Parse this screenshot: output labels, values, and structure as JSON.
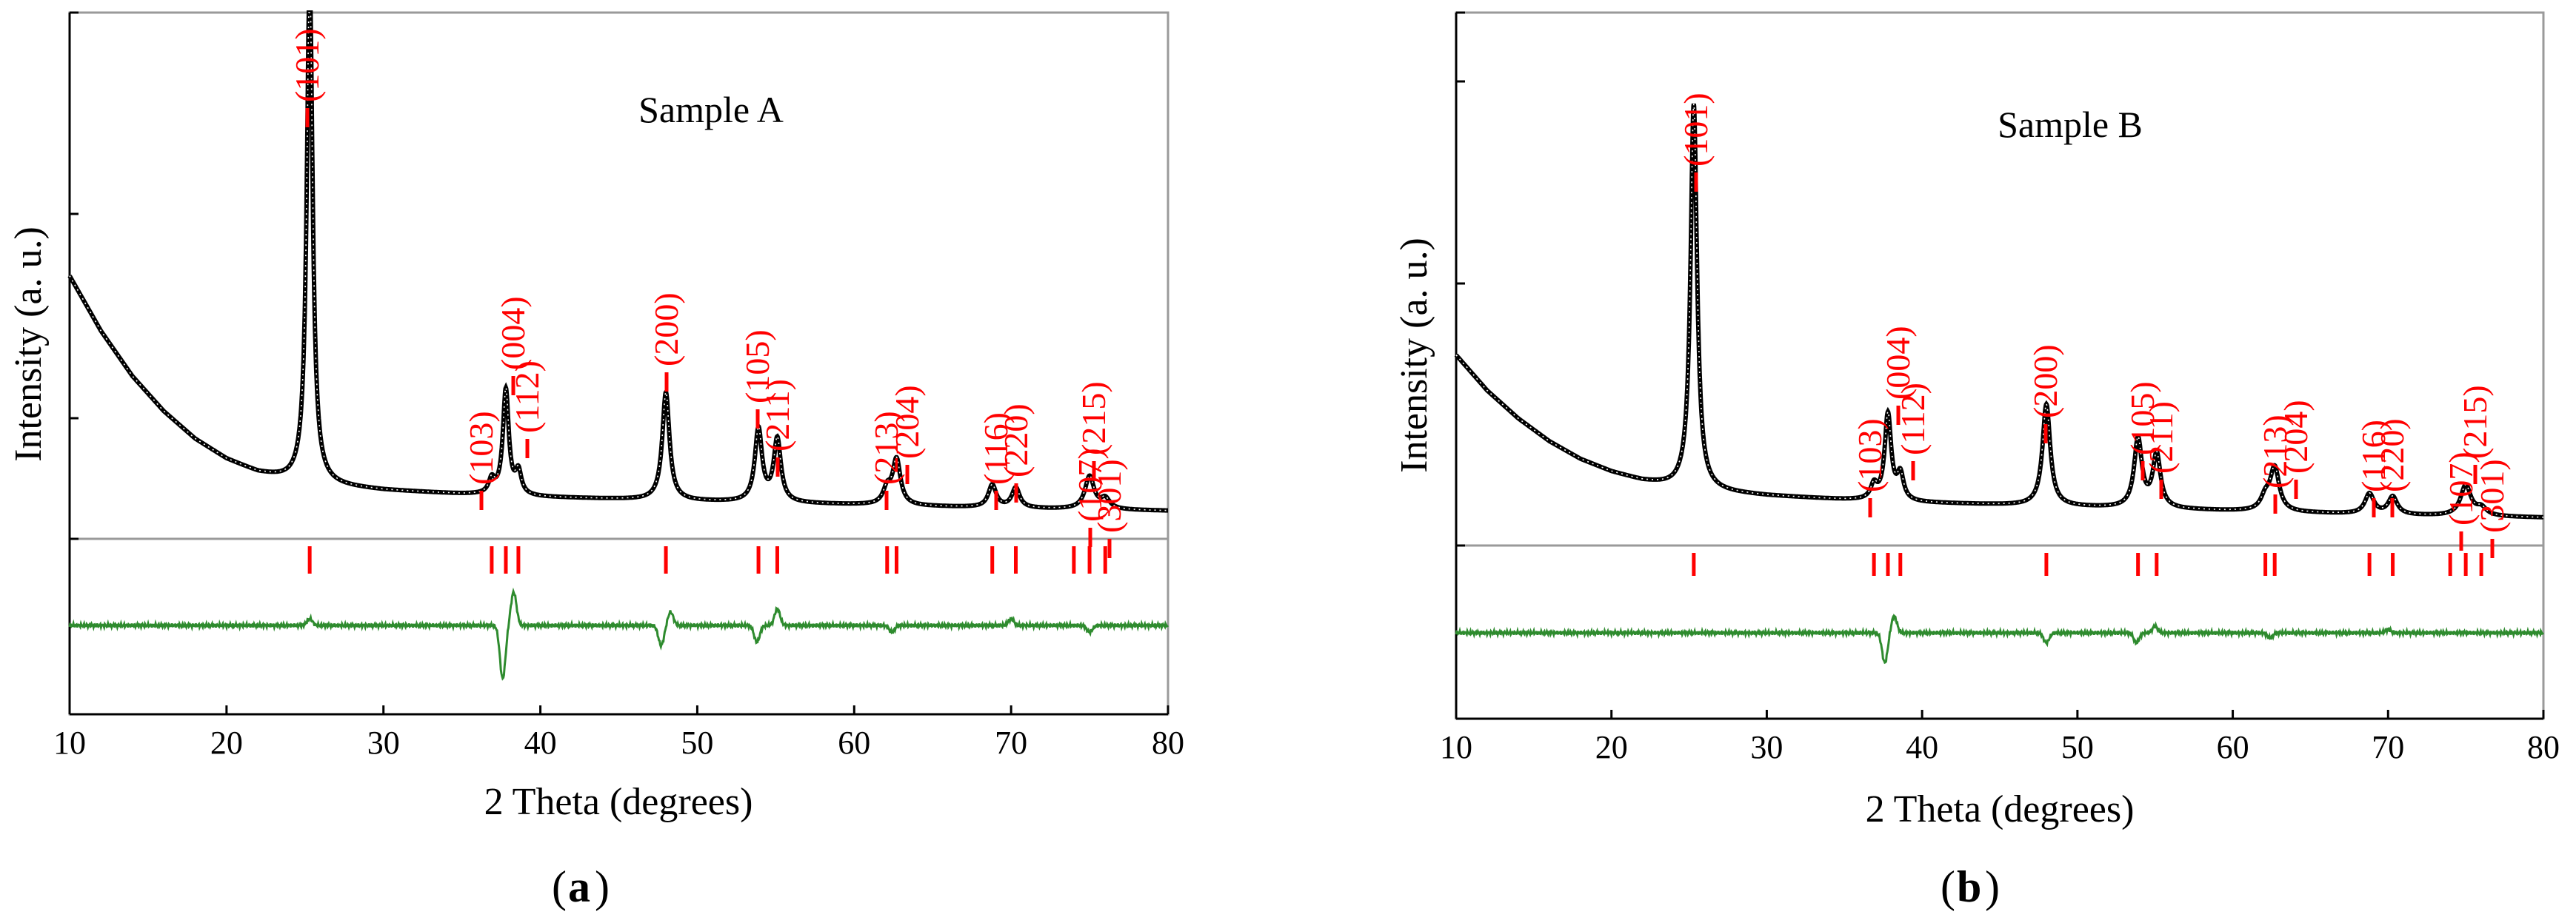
{
  "chart_data": [
    {
      "type": "line",
      "panel_label": "a",
      "title": "Sample A",
      "xlabel": "2 Theta (degrees)",
      "ylabel": "Intensity (a. u.)",
      "xlim": [
        10,
        80
      ],
      "xticks": [
        "10",
        "20",
        "30",
        "40",
        "50",
        "60",
        "70",
        "80"
      ],
      "ylim": [
        0,
        100
      ],
      "reflections": [
        {
          "hkl": "(101)",
          "two_theta": 25.3
        },
        {
          "hkl": "(103)",
          "two_theta": 36.9
        },
        {
          "hkl": "(004)",
          "two_theta": 37.8
        },
        {
          "hkl": "(112)",
          "two_theta": 38.6
        },
        {
          "hkl": "(200)",
          "two_theta": 48.0
        },
        {
          "hkl": "(105)",
          "two_theta": 53.9
        },
        {
          "hkl": "(211)",
          "two_theta": 55.1
        },
        {
          "hkl": "(213)",
          "two_theta": 62.1
        },
        {
          "hkl": "(204)",
          "two_theta": 62.7
        },
        {
          "hkl": "(116)",
          "two_theta": 68.8
        },
        {
          "hkl": "(220)",
          "two_theta": 70.3
        },
        {
          "hkl": "(107)",
          "two_theta": 74.0
        },
        {
          "hkl": "(215)",
          "two_theta": 75.0
        },
        {
          "hkl": "(301)",
          "two_theta": 76.0
        }
      ],
      "observed": {
        "baseline": [
          [
            10,
            49
          ],
          [
            12,
            38
          ],
          [
            14,
            29
          ],
          [
            16,
            22
          ],
          [
            18,
            16.5
          ],
          [
            20,
            12.5
          ],
          [
            22,
            9.8
          ],
          [
            24,
            8.2
          ],
          [
            26,
            7.3
          ],
          [
            30,
            6.3
          ],
          [
            35,
            5.5
          ],
          [
            40,
            4.9
          ],
          [
            50,
            4.1
          ],
          [
            60,
            3.4
          ],
          [
            70,
            2.7
          ],
          [
            80,
            2.2
          ]
        ],
        "peaks": [
          {
            "two_theta": 25.3,
            "height": 101,
            "fwhm": 0.45
          },
          {
            "two_theta": 36.9,
            "height": 2.8,
            "fwhm": 0.45
          },
          {
            "two_theta": 37.8,
            "height": 21,
            "fwhm": 0.45
          },
          {
            "two_theta": 38.6,
            "height": 4.5,
            "fwhm": 0.45
          },
          {
            "two_theta": 48.0,
            "height": 21.5,
            "fwhm": 0.55
          },
          {
            "two_theta": 53.9,
            "height": 14.5,
            "fwhm": 0.55
          },
          {
            "two_theta": 55.1,
            "height": 12.5,
            "fwhm": 0.55
          },
          {
            "two_theta": 62.1,
            "height": 3.0,
            "fwhm": 0.6
          },
          {
            "two_theta": 62.7,
            "height": 9.0,
            "fwhm": 0.6
          },
          {
            "two_theta": 68.8,
            "height": 4.5,
            "fwhm": 0.6
          },
          {
            "two_theta": 70.3,
            "height": 4.0,
            "fwhm": 0.6
          },
          {
            "two_theta": 75.0,
            "height": 6.5,
            "fwhm": 0.7
          },
          {
            "two_theta": 76.0,
            "height": 2.0,
            "fwhm": 0.7
          }
        ]
      },
      "difference": [
        {
          "two_theta": 25.3,
          "amplitude": 2
        },
        {
          "two_theta": 37.6,
          "amplitude": -16
        },
        {
          "two_theta": 38.3,
          "amplitude": 10
        },
        {
          "two_theta": 47.7,
          "amplitude": -6
        },
        {
          "two_theta": 48.3,
          "amplitude": 4
        },
        {
          "two_theta": 53.8,
          "amplitude": -5
        },
        {
          "two_theta": 55.1,
          "amplitude": 5
        },
        {
          "two_theta": 62.4,
          "amplitude": -2
        },
        {
          "two_theta": 70.0,
          "amplitude": 2
        },
        {
          "two_theta": 75.0,
          "amplitude": -2
        }
      ]
    },
    {
      "type": "line",
      "panel_label": "b",
      "title": "Sample B",
      "xlabel": "2 Theta (degrees)",
      "ylabel": "Intensity (a. u.)",
      "xlim": [
        10,
        80
      ],
      "xticks": [
        "10",
        "20",
        "30",
        "40",
        "50",
        "60",
        "70",
        "80"
      ],
      "ylim": [
        0,
        100
      ],
      "reflections": [
        {
          "hkl": "(101)",
          "two_theta": 25.3
        },
        {
          "hkl": "(103)",
          "two_theta": 36.9
        },
        {
          "hkl": "(004)",
          "two_theta": 37.8
        },
        {
          "hkl": "(112)",
          "two_theta": 38.6
        },
        {
          "hkl": "(200)",
          "two_theta": 48.0
        },
        {
          "hkl": "(105)",
          "two_theta": 53.9
        },
        {
          "hkl": "(211)",
          "two_theta": 55.1
        },
        {
          "hkl": "(213)",
          "two_theta": 62.1
        },
        {
          "hkl": "(204)",
          "two_theta": 62.7
        },
        {
          "hkl": "(116)",
          "two_theta": 68.8
        },
        {
          "hkl": "(220)",
          "two_theta": 70.3
        },
        {
          "hkl": "(107)",
          "two_theta": 74.0
        },
        {
          "hkl": "(215)",
          "two_theta": 75.0
        },
        {
          "hkl": "(301)",
          "two_theta": 76.0
        }
      ],
      "observed": {
        "baseline": [
          [
            10,
            34
          ],
          [
            12,
            27
          ],
          [
            14,
            21.5
          ],
          [
            16,
            17
          ],
          [
            18,
            13.5
          ],
          [
            20,
            11
          ],
          [
            22,
            9.2
          ],
          [
            24,
            8
          ],
          [
            26,
            7.2
          ],
          [
            30,
            6.3
          ],
          [
            35,
            5.5
          ],
          [
            40,
            4.9
          ],
          [
            50,
            4.1
          ],
          [
            60,
            3.3
          ],
          [
            70,
            2.5
          ],
          [
            80,
            2.0
          ]
        ],
        "peaks": [
          {
            "two_theta": 25.3,
            "height": 76,
            "fwhm": 0.5
          },
          {
            "two_theta": 36.9,
            "height": 2.8,
            "fwhm": 0.5
          },
          {
            "two_theta": 37.8,
            "height": 17,
            "fwhm": 0.5
          },
          {
            "two_theta": 38.6,
            "height": 5.0,
            "fwhm": 0.5
          },
          {
            "two_theta": 48.0,
            "height": 20,
            "fwhm": 0.6
          },
          {
            "two_theta": 53.9,
            "height": 13.5,
            "fwhm": 0.6
          },
          {
            "two_theta": 55.1,
            "height": 10.5,
            "fwhm": 0.6
          },
          {
            "two_theta": 62.1,
            "height": 2.5,
            "fwhm": 0.7
          },
          {
            "two_theta": 62.7,
            "height": 8.5,
            "fwhm": 0.7
          },
          {
            "two_theta": 68.8,
            "height": 4.0,
            "fwhm": 0.7
          },
          {
            "two_theta": 70.3,
            "height": 3.5,
            "fwhm": 0.7
          },
          {
            "two_theta": 75.0,
            "height": 6.0,
            "fwhm": 0.8
          },
          {
            "two_theta": 76.0,
            "height": 1.5,
            "fwhm": 0.8
          }
        ]
      },
      "difference": [
        {
          "two_theta": 37.6,
          "amplitude": -9
        },
        {
          "two_theta": 38.2,
          "amplitude": 5
        },
        {
          "two_theta": 48.0,
          "amplitude": -3
        },
        {
          "two_theta": 53.8,
          "amplitude": -3
        },
        {
          "two_theta": 55.0,
          "amplitude": 2
        },
        {
          "two_theta": 62.4,
          "amplitude": -1.5
        },
        {
          "two_theta": 70.0,
          "amplitude": 1
        }
      ]
    }
  ],
  "colors": {
    "observed": "#000000",
    "reflection": "#ff0000",
    "difference": "#2e8b2e",
    "axis": "#000000",
    "frame": "#9a9a9a"
  }
}
